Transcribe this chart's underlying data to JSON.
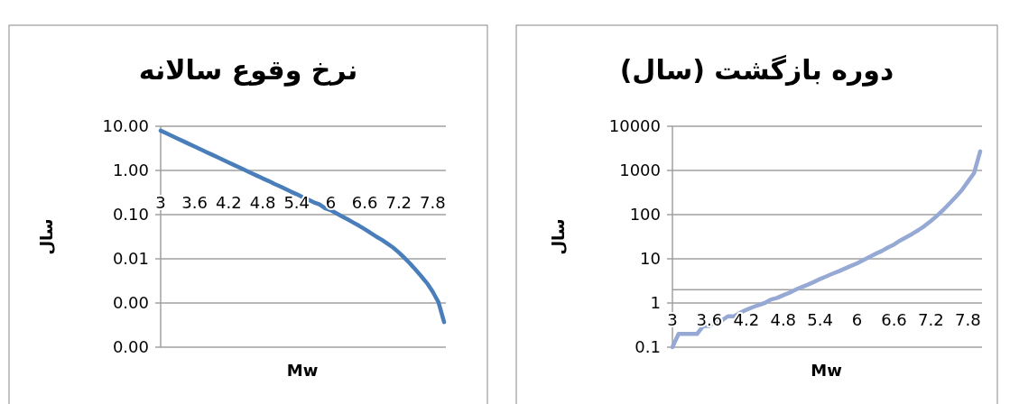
{
  "chart_data": [
    {
      "type": "line",
      "title": "نرخ وقوع سالانه",
      "xlabel": "Mw",
      "ylabel": "سال",
      "log": "y",
      "grid": "y",
      "marker": "none",
      "line_style": "solid",
      "categories": [
        "3",
        null,
        null,
        null,
        null,
        null,
        "3.6",
        null,
        null,
        null,
        null,
        null,
        "4.2",
        null,
        null,
        null,
        null,
        null,
        "4.8",
        null,
        null,
        null,
        null,
        null,
        "5.4",
        null,
        null,
        null,
        null,
        null,
        "6",
        null,
        null,
        null,
        null,
        null,
        "6.6",
        null,
        null,
        null,
        null,
        null,
        "7.2",
        null,
        null,
        null,
        null,
        null,
        "7.8",
        null,
        null
      ],
      "ylim": [
        0.0001,
        10
      ],
      "yticks": [
        {
          "value": 10,
          "label": "10.00"
        },
        {
          "value": 1,
          "label": "1.00"
        },
        {
          "value": 0.1,
          "label": "0.10"
        },
        {
          "value": 0.01,
          "label": "0.01"
        },
        {
          "value": 0.001,
          "label": "0.00"
        },
        {
          "value": 0.0001,
          "label": "0.00"
        }
      ],
      "series": [
        {
          "color": "#4a7ebb",
          "values": [
            7.94,
            6.92,
            6.03,
            5.25,
            4.57,
            3.98,
            3.47,
            3.02,
            2.63,
            2.29,
            2.0,
            1.74,
            1.51,
            1.32,
            1.15,
            1.0,
            0.87,
            0.76,
            0.66,
            0.58,
            0.5,
            0.44,
            0.38,
            0.33,
            0.29,
            0.25,
            0.22,
            0.19,
            0.17,
            0.14,
            0.126,
            0.107,
            0.091,
            0.078,
            0.066,
            0.056,
            0.047,
            0.039,
            0.032,
            0.027,
            0.022,
            0.018,
            0.014,
            0.0105,
            0.0078,
            0.0056,
            0.004,
            0.0028,
            0.0018,
            0.00105,
            0.00037
          ]
        }
      ]
    },
    {
      "type": "line",
      "title": "دوره بازگشت (سال)",
      "xlabel": "Mw",
      "ylabel": "سال",
      "log": "y",
      "grid": "y",
      "marker": "none",
      "line_style": "solid",
      "categories": [
        "3",
        null,
        null,
        null,
        null,
        null,
        "3.6",
        null,
        null,
        null,
        null,
        null,
        "4.2",
        null,
        null,
        null,
        null,
        null,
        "4.8",
        null,
        null,
        null,
        null,
        null,
        "5.4",
        null,
        null,
        null,
        null,
        null,
        "6",
        null,
        null,
        null,
        null,
        null,
        "6.6",
        null,
        null,
        null,
        null,
        null,
        "7.2",
        null,
        null,
        null,
        null,
        null,
        "7.8",
        null,
        null
      ],
      "ylim": [
        0.1,
        10000
      ],
      "yticks": [
        10000,
        1000,
        100,
        10,
        1,
        0.1
      ],
      "ref_lines": [
        {
          "axis": "y",
          "value": 2,
          "color": "#a0a0a0"
        }
      ],
      "series": [
        {
          "color": "#95a9d4",
          "values": [
            0.1,
            0.2,
            0.2,
            0.2,
            0.2,
            0.3,
            0.3,
            0.4,
            0.4,
            0.5,
            0.5,
            0.6,
            0.7,
            0.8,
            0.9,
            1.0,
            1.2,
            1.3,
            1.5,
            1.7,
            2.0,
            2.3,
            2.6,
            3.0,
            3.5,
            4.0,
            4.6,
            5.2,
            6.0,
            6.9,
            7.9,
            9.3,
            11,
            13,
            15,
            18,
            21,
            26,
            31,
            37,
            45,
            56,
            72,
            95,
            128,
            178,
            250,
            355,
            560,
            870,
            2700
          ]
        }
      ]
    }
  ]
}
